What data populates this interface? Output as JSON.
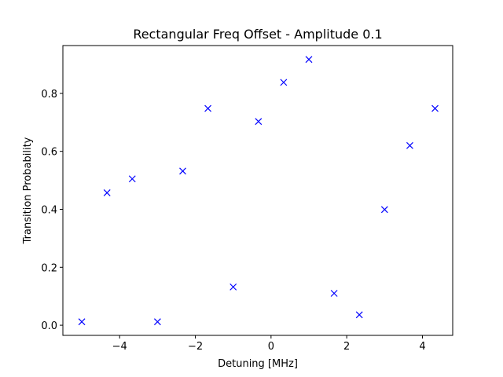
{
  "chart_data": {
    "type": "scatter",
    "title": "Rectangular Freq Offset - Amplitude 0.1",
    "xlabel": "Detuning [MHz]",
    "ylabel": "Transition Probability",
    "xlim": [
      -5.5,
      4.8
    ],
    "ylim": [
      -0.035,
      0.965
    ],
    "xticks": [
      -4,
      -2,
      0,
      2,
      4
    ],
    "xtick_labels": [
      "−4",
      "−2",
      "0",
      "2",
      "4"
    ],
    "yticks": [
      0.0,
      0.2,
      0.4,
      0.6,
      0.8
    ],
    "ytick_labels": [
      "0.0",
      "0.2",
      "0.4",
      "0.6",
      "0.8"
    ],
    "grid": false,
    "marker": "x",
    "color": "#0000ff",
    "series": [
      {
        "x": [
          -5.0,
          -4.333,
          -3.667,
          -3.0,
          -2.333,
          -1.667,
          -1.0,
          -0.333,
          0.333,
          1.0,
          1.667,
          2.333,
          3.0,
          3.667,
          4.333
        ],
        "y": [
          0.012,
          0.457,
          0.505,
          0.012,
          0.532,
          0.748,
          0.132,
          0.703,
          0.838,
          0.917,
          0.11,
          0.036,
          0.399,
          0.62,
          0.748
        ]
      }
    ]
  }
}
